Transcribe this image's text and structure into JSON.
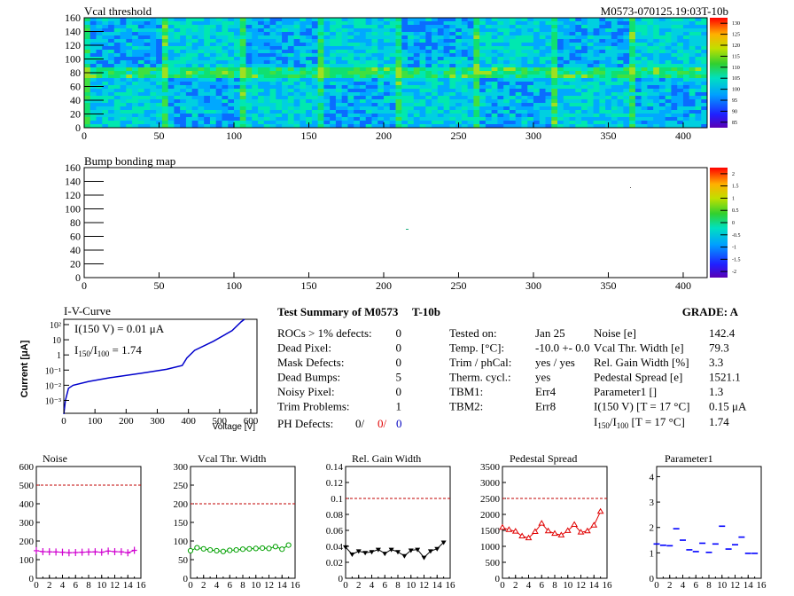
{
  "top_map": {
    "title": "Vcal threshold",
    "module_label": "M0573-070125.19:03T-10b",
    "x_ticks": [
      0,
      50,
      100,
      150,
      200,
      250,
      300,
      350,
      400
    ],
    "y_ticks": [
      0,
      20,
      40,
      60,
      80,
      100,
      120,
      140,
      160
    ],
    "z_ticks": [
      "85",
      "90",
      "95",
      "100",
      "105",
      "110",
      "115",
      "120",
      "125",
      "130"
    ]
  },
  "bump_map": {
    "title": "Bump bonding map",
    "x_ticks": [
      0,
      50,
      100,
      150,
      200,
      250,
      300,
      350,
      400
    ],
    "y_ticks": [
      0,
      20,
      40,
      60,
      80,
      100,
      120,
      140,
      160
    ],
    "z_ticks": [
      "-2",
      "-1.5",
      "-1",
      "-0.5",
      "0",
      "0.5",
      "1",
      "1.5",
      "2"
    ]
  },
  "iv": {
    "title": "I-V-Curve",
    "ylabel": "Current [μA]",
    "xlabel": "Voltage [V]",
    "annot1": "I(150 V) = 0.01 μA",
    "annot2_pre": "I",
    "annot2_sub1": "150",
    "annot2_mid": "/I",
    "annot2_sub2": "100",
    "annot2_post": " =  1.74",
    "x_ticks": [
      0,
      100,
      200,
      300,
      400,
      500,
      600
    ],
    "y_tick_labels": [
      "10²",
      "10",
      "1",
      "10⁻¹",
      "10⁻²",
      "10⁻³"
    ]
  },
  "summary": {
    "title": "Test Summary of M0573",
    "tag": "T-10b",
    "grade": "GRADE:  A",
    "left_labels": [
      "ROCs > 1% defects:",
      "Dead Pixel:",
      "Mask Defects:",
      "Dead Bumps:",
      "Noisy Pixel:",
      "Trim Problems:"
    ],
    "left_values": [
      "0",
      "0",
      "0",
      "5",
      "0",
      "1"
    ],
    "ph_label": "PH Defects:",
    "ph_values": [
      "0/",
      "0/",
      "0"
    ],
    "mid_labels": [
      "Tested on:",
      "Temp. [°C]:",
      "Trim / phCal:",
      "Therm. cycl.:",
      "TBM1:",
      "TBM2:"
    ],
    "mid_values": [
      "Jan 25",
      "-10.0 +- 0.0",
      "yes / yes",
      "yes",
      "Err4",
      "Err8"
    ],
    "right_labels": [
      "Noise [e]",
      "Vcal Thr. Width [e]",
      "Rel. Gain Width [%]",
      "Pedestal Spread [e]",
      "Parameter1 []",
      "I(150 V) [T = 17 °C]"
    ],
    "right_values": [
      "142.4",
      "79.3",
      "3.3",
      "1521.1",
      "1.3",
      "0.15 μA"
    ],
    "ratio_label_pre": "I",
    "ratio_sub1": "150",
    "ratio_mid": "/I",
    "ratio_sub2": "100",
    "ratio_post": "  [T = 17 °C]",
    "ratio_value": "1.74"
  },
  "colors": {
    "noise": "#d000d0",
    "vcal": "#00a000",
    "gain": "#000000",
    "pedestal": "#e00000",
    "param1": "#0000ff",
    "limit": "#c00000",
    "iv_line": "#0000cc"
  },
  "chart_data": [
    {
      "type": "line",
      "title": "Noise",
      "x": [
        0,
        1,
        2,
        3,
        4,
        5,
        6,
        7,
        8,
        9,
        10,
        11,
        12,
        13,
        14,
        15
      ],
      "series": [
        {
          "values": [
            148,
            143,
            142,
            141,
            140,
            137,
            138,
            140,
            141,
            142,
            140,
            146,
            143,
            142,
            137,
            150
          ]
        }
      ],
      "limit": 500,
      "ylim": [
        0,
        600
      ],
      "yticks": [
        0,
        100,
        200,
        300,
        400,
        500,
        600
      ],
      "yfmt": "int",
      "xlim": [
        0,
        16
      ],
      "xticks": [
        0,
        2,
        4,
        6,
        8,
        10,
        12,
        14,
        16
      ],
      "marker": "cross"
    },
    {
      "type": "line",
      "title": "Vcal Thr. Width",
      "x": [
        0,
        1,
        2,
        3,
        4,
        5,
        6,
        7,
        8,
        9,
        10,
        11,
        12,
        13,
        14,
        15
      ],
      "series": [
        {
          "values": [
            74,
            82,
            79,
            76,
            74,
            72,
            75,
            76,
            78,
            79,
            80,
            81,
            80,
            85,
            78,
            89
          ]
        }
      ],
      "limit": 200,
      "ylim": [
        0,
        300
      ],
      "yticks": [
        0,
        50,
        100,
        150,
        200,
        250,
        300
      ],
      "yfmt": "int",
      "xlim": [
        0,
        16
      ],
      "xticks": [
        0,
        2,
        4,
        6,
        8,
        10,
        12,
        14,
        16
      ],
      "marker": "circle"
    },
    {
      "type": "line",
      "title": "Rel. Gain Width",
      "x": [
        0,
        1,
        2,
        3,
        4,
        5,
        6,
        7,
        8,
        9,
        10,
        11,
        12,
        13,
        14,
        15
      ],
      "series": [
        {
          "values": [
            0.039,
            0.03,
            0.034,
            0.032,
            0.033,
            0.036,
            0.031,
            0.036,
            0.033,
            0.028,
            0.035,
            0.036,
            0.026,
            0.034,
            0.037,
            0.045
          ]
        }
      ],
      "limit": 0.1,
      "ylim": [
        0,
        0.14
      ],
      "yticks": [
        0,
        0.02,
        0.04,
        0.06,
        0.08,
        0.1,
        0.12,
        0.14
      ],
      "yfmt": "g",
      "xlim": [
        0,
        16
      ],
      "xticks": [
        0,
        2,
        4,
        6,
        8,
        10,
        12,
        14,
        16
      ],
      "marker": "tri"
    },
    {
      "type": "line",
      "title": "Pedestal Spread",
      "x": [
        0,
        1,
        2,
        3,
        4,
        5,
        6,
        7,
        8,
        9,
        10,
        11,
        12,
        13,
        14,
        15
      ],
      "series": [
        {
          "values": [
            1590,
            1520,
            1470,
            1320,
            1260,
            1460,
            1720,
            1480,
            1400,
            1350,
            1490,
            1680,
            1440,
            1480,
            1660,
            2090
          ]
        }
      ],
      "limit": 2500,
      "ylim": [
        0,
        3500
      ],
      "yticks": [
        0,
        500,
        1000,
        1500,
        2000,
        2500,
        3000,
        3500
      ],
      "yfmt": "int",
      "xlim": [
        0,
        16
      ],
      "xticks": [
        0,
        2,
        4,
        6,
        8,
        10,
        12,
        14,
        16
      ],
      "marker": "opentri"
    },
    {
      "type": "scatter",
      "title": "Parameter1",
      "x": [
        0,
        1,
        2,
        3,
        4,
        5,
        6,
        7,
        8,
        9,
        10,
        11,
        12,
        13,
        14,
        15
      ],
      "series": [
        {
          "values": [
            1.35,
            1.3,
            1.28,
            1.95,
            1.5,
            1.12,
            1.05,
            1.38,
            1.02,
            1.35,
            2.05,
            1.15,
            1.32,
            1.62,
            0.98,
            0.98
          ]
        }
      ],
      "ylim": [
        0,
        4.4
      ],
      "yticks": [
        0,
        1,
        2,
        3,
        4
      ],
      "yfmt": "int",
      "xlim": [
        0,
        16
      ],
      "xticks": [
        0,
        2,
        4,
        6,
        8,
        10,
        12,
        14,
        16
      ],
      "marker": "hbar"
    }
  ]
}
